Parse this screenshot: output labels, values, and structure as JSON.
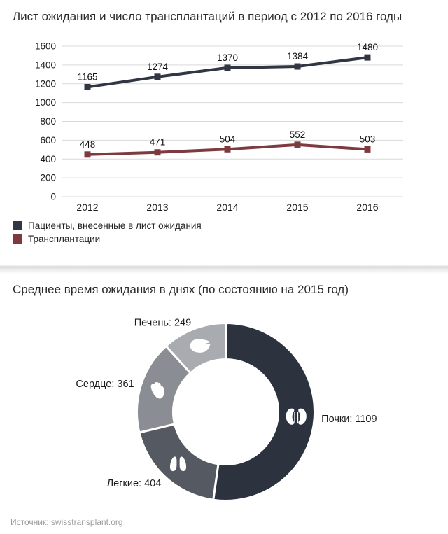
{
  "source": "Источник: swisstransplant.org",
  "chart_data": [
    {
      "type": "line",
      "title": "Лист ожидания и число трансплантаций в период с 2012 по 2016 годы",
      "categories": [
        "2012",
        "2013",
        "2014",
        "2015",
        "2016"
      ],
      "series": [
        {
          "name": "Пациенты, внесенные в лист ожидания",
          "color": "#303642",
          "values": [
            1165,
            1274,
            1370,
            1384,
            1480
          ]
        },
        {
          "name": "Трансплантации",
          "color": "#7d3b3f",
          "values": [
            448,
            471,
            504,
            552,
            503
          ]
        }
      ],
      "ylim": [
        0,
        1600
      ],
      "ytick_step": 200,
      "grid": true,
      "gridline_color": "#d9d9d9",
      "marker": "square",
      "data_labels": true,
      "legend_position": "bottom-left"
    },
    {
      "type": "pie",
      "subtype": "donut",
      "title": "Среднее время ожидания в днях (по состоянию на 2015 год)",
      "direction": "clockwise",
      "start_angle_deg": 0,
      "label_format": "{label}: {value}",
      "slices": [
        {
          "label": "Почки",
          "value": 1109,
          "color": "#2d333e",
          "icon": "kidneys-icon"
        },
        {
          "label": "Легкие",
          "value": 404,
          "color": "#555a62",
          "icon": "lungs-icon"
        },
        {
          "label": "Сердце",
          "value": 361,
          "color": "#8a8e94",
          "icon": "heart-icon"
        },
        {
          "label": "Печень",
          "value": 249,
          "color": "#a8abb0",
          "icon": "liver-icon"
        }
      ]
    }
  ]
}
